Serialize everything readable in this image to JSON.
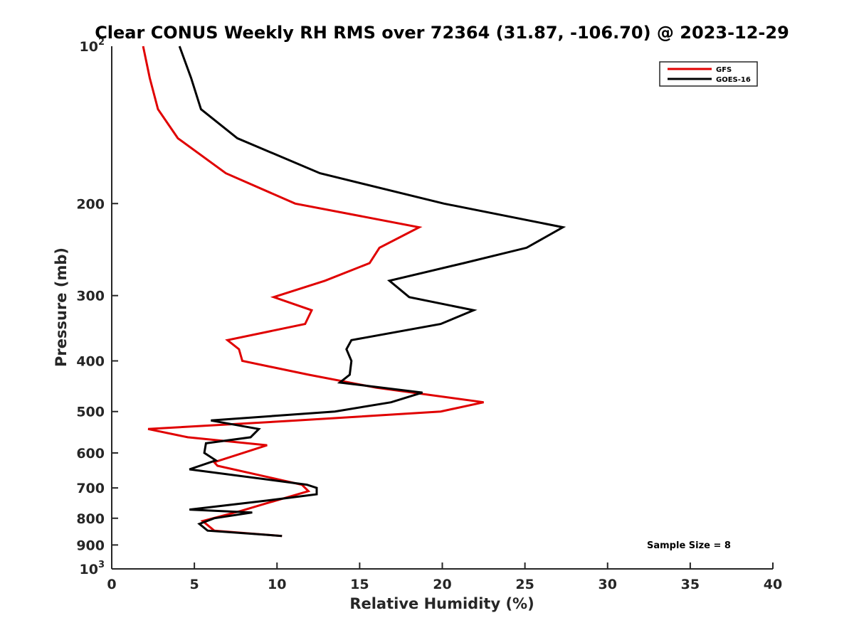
{
  "chart_data": {
    "type": "line",
    "title": "Clear CONUS Weekly RH RMS over 72364 (31.87, -106.70) @ 2023-12-29",
    "xlabel": "Relative Humidity (%)",
    "ylabel": "Pressure (mb)",
    "xlim": [
      0,
      40
    ],
    "ylim": [
      100,
      1000
    ],
    "yscale": "log",
    "y_reversed": true,
    "xticks": [
      0,
      5,
      10,
      15,
      20,
      25,
      30,
      35,
      40
    ],
    "xtick_labels": [
      "0",
      "5",
      "10",
      "15",
      "20",
      "25",
      "30",
      "35",
      "40"
    ],
    "yticks": [
      200,
      300,
      400,
      500,
      600,
      700,
      800,
      900
    ],
    "ytick_labels": [
      "200",
      "300",
      "400",
      "500",
      "600",
      "700",
      "800",
      "900"
    ],
    "ytick_label_top": {
      "base": "10",
      "exp": "2",
      "value": 100
    },
    "ytick_label_bottom": {
      "base": "10",
      "exp": "3",
      "value": 1000
    },
    "grid": false,
    "legend_position": "top-right",
    "annotation": "Sample Size = 8",
    "series": [
      {
        "name": "GFS",
        "color": "#e00000",
        "points": [
          [
            1.9,
            100
          ],
          [
            2.3,
            115
          ],
          [
            2.8,
            132
          ],
          [
            4.0,
            150
          ],
          [
            6.9,
            175
          ],
          [
            11.1,
            200
          ],
          [
            18.6,
            222
          ],
          [
            16.2,
            243
          ],
          [
            15.6,
            260
          ],
          [
            12.9,
            281
          ],
          [
            9.8,
            302
          ],
          [
            12.1,
            320
          ],
          [
            11.7,
            340
          ],
          [
            7.0,
            365
          ],
          [
            7.7,
            380
          ],
          [
            7.9,
            400
          ],
          [
            11.9,
            425
          ],
          [
            16.0,
            450
          ],
          [
            22.5,
            480
          ],
          [
            19.9,
            500
          ],
          [
            11.2,
            520
          ],
          [
            2.2,
            540
          ],
          [
            4.6,
            560
          ],
          [
            9.4,
            580
          ],
          [
            6.2,
            625
          ],
          [
            6.4,
            635
          ],
          [
            11.5,
            690
          ],
          [
            11.9,
            710
          ],
          [
            9.3,
            750
          ],
          [
            7.8,
            775
          ],
          [
            5.5,
            810
          ],
          [
            6.2,
            845
          ],
          [
            10.3,
            865
          ]
        ]
      },
      {
        "name": "GOES-16",
        "color": "#000000",
        "points": [
          [
            4.1,
            100
          ],
          [
            4.8,
            115
          ],
          [
            5.4,
            132
          ],
          [
            7.6,
            150
          ],
          [
            12.6,
            175
          ],
          [
            20.1,
            200
          ],
          [
            27.3,
            222
          ],
          [
            25.1,
            243
          ],
          [
            21.3,
            260
          ],
          [
            16.8,
            281
          ],
          [
            18.0,
            302
          ],
          [
            21.9,
            320
          ],
          [
            19.9,
            340
          ],
          [
            14.5,
            365
          ],
          [
            14.2,
            380
          ],
          [
            14.5,
            400
          ],
          [
            14.4,
            425
          ],
          [
            13.8,
            440
          ],
          [
            18.8,
            460
          ],
          [
            16.9,
            480
          ],
          [
            13.5,
            500
          ],
          [
            6.0,
            520
          ],
          [
            8.9,
            540
          ],
          [
            8.4,
            560
          ],
          [
            5.7,
            575
          ],
          [
            5.6,
            600
          ],
          [
            6.3,
            620
          ],
          [
            4.7,
            645
          ],
          [
            11.8,
            690
          ],
          [
            12.4,
            700
          ],
          [
            12.4,
            720
          ],
          [
            9.4,
            740
          ],
          [
            4.7,
            770
          ],
          [
            8.5,
            780
          ],
          [
            6.2,
            800
          ],
          [
            5.3,
            820
          ],
          [
            5.8,
            845
          ],
          [
            10.3,
            865
          ]
        ]
      }
    ]
  }
}
